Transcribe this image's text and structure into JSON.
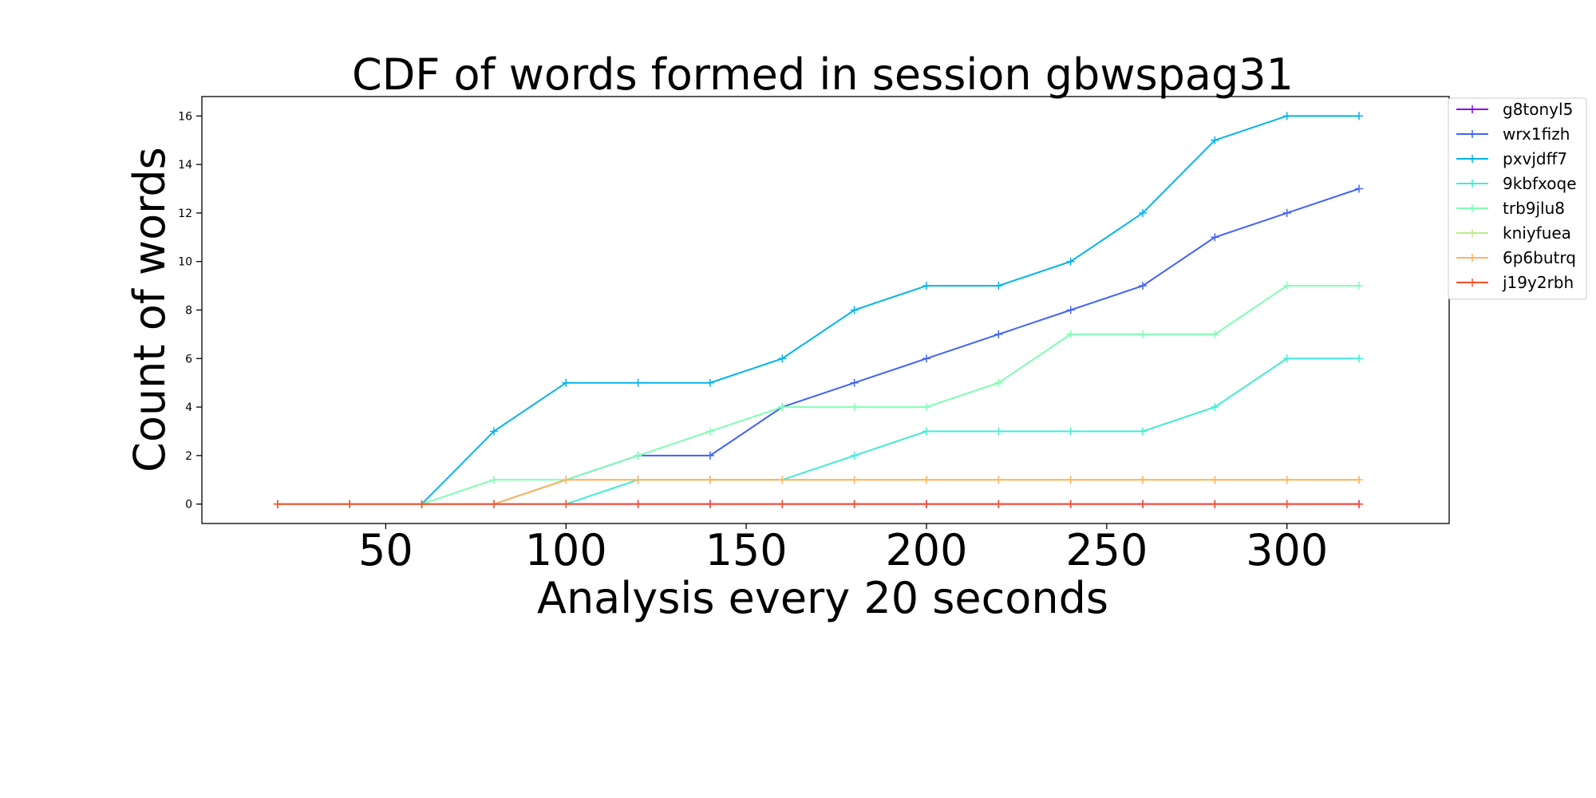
{
  "chart_data": {
    "type": "line",
    "title": "CDF of words formed in session gbwspag31",
    "xlabel": "Analysis every 20 seconds",
    "ylabel": "Count of words",
    "xlim": [
      -1,
      345
    ],
    "ylim": [
      -0.8,
      16.8
    ],
    "xticks": [
      50,
      100,
      150,
      200,
      250,
      300
    ],
    "yticks": [
      0,
      2,
      4,
      6,
      8,
      10,
      12,
      14,
      16
    ],
    "grid": false,
    "legend_position": "outside-top-right",
    "x": [
      20,
      40,
      60,
      80,
      100,
      120,
      140,
      160,
      180,
      200,
      220,
      240,
      260,
      280,
      300,
      320
    ],
    "series": [
      {
        "name": "g8tonyl5",
        "color": "#7f00ff",
        "values": [
          0,
          0,
          0,
          0,
          0,
          0,
          0,
          0,
          0,
          0,
          0,
          0,
          0,
          0,
          0,
          0
        ]
      },
      {
        "name": "wrx1fizh",
        "color": "#4062fa",
        "values": [
          0,
          0,
          0,
          0,
          1,
          2,
          2,
          4,
          5,
          6,
          7,
          8,
          9,
          11,
          12,
          13
        ]
      },
      {
        "name": "pxvjdff7",
        "color": "#00b5eb",
        "values": [
          0,
          0,
          0,
          3,
          5,
          5,
          5,
          6,
          8,
          9,
          9,
          10,
          12,
          15,
          16,
          16
        ]
      },
      {
        "name": "9kbfxoqe",
        "color": "#40ecd4",
        "values": [
          0,
          0,
          0,
          0,
          0,
          1,
          1,
          1,
          2,
          3,
          3,
          3,
          3,
          4,
          6,
          6
        ]
      },
      {
        "name": "trb9jlu8",
        "color": "#80feb3",
        "values": [
          0,
          0,
          0,
          1,
          1,
          2,
          3,
          4,
          4,
          4,
          5,
          7,
          7,
          7,
          9,
          9
        ]
      },
      {
        "name": "kniyfuea",
        "color": "#c0eb8d",
        "values": [
          0,
          0,
          0,
          0,
          1,
          1,
          1,
          1,
          1,
          1,
          1,
          1,
          1,
          1,
          1,
          1
        ]
      },
      {
        "name": "6p6butrq",
        "color": "#ffb360",
        "values": [
          0,
          0,
          0,
          0,
          1,
          1,
          1,
          1,
          1,
          1,
          1,
          1,
          1,
          1,
          1,
          1
        ]
      },
      {
        "name": "j19y2rbh",
        "color": "#ff4d27",
        "values": [
          0,
          0,
          0,
          0,
          0,
          0,
          0,
          0,
          0,
          0,
          0,
          0,
          0,
          0,
          0,
          0
        ]
      }
    ]
  }
}
